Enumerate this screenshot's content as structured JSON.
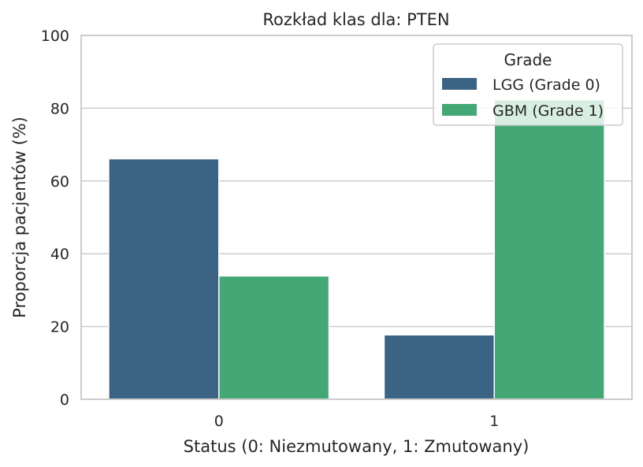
{
  "chart_data": {
    "type": "bar",
    "title": "Rozkład klas dla: PTEN",
    "xlabel": "Status (0: Niezmutowany, 1: Zmutowany)",
    "ylabel": "Proporcja pacjentów (%)",
    "categories": [
      "0",
      "1"
    ],
    "ylim": [
      0,
      100
    ],
    "yticks": [
      "0",
      "20",
      "40",
      "60",
      "80",
      "100"
    ],
    "grid": true,
    "legend": {
      "title": "Grade",
      "placement": "top-right"
    },
    "series": [
      {
        "name": "LGG (Grade 0)",
        "values": [
          66.1,
          17.7
        ],
        "color": "#3b6383"
      },
      {
        "name": "GBM (Grade 1)",
        "values": [
          33.9,
          82.3
        ],
        "color": "#44a876"
      }
    ]
  }
}
